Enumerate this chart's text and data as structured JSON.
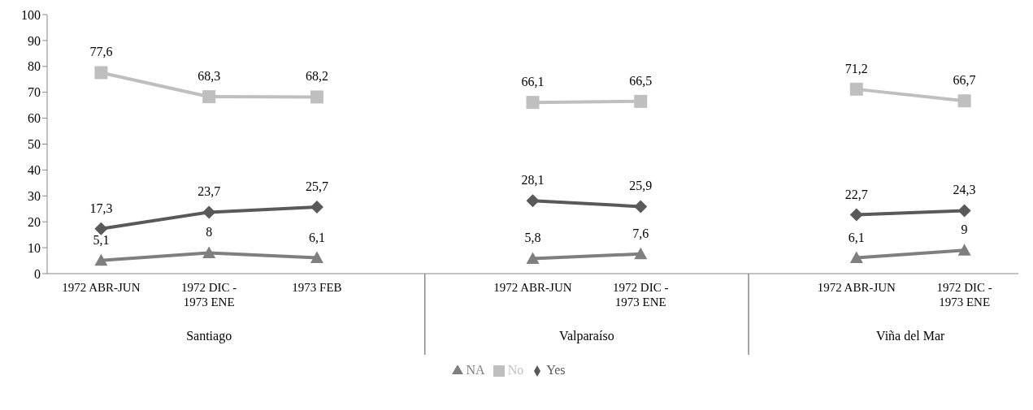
{
  "chart_data": {
    "type": "line",
    "categories": [
      "1972 ABR-JUN",
      "1972 DIC -\n1973 ENE",
      "1973 FEB",
      null,
      "1972 ABR-JUN",
      "1972 DIC -\n1973 ENE",
      null,
      "1972 ABR-JUN",
      "1972 DIC -\n1973 ENE"
    ],
    "series": [
      {
        "name": "Yes",
        "color": "#595959",
        "marker": "diamond",
        "values": [
          17.3,
          23.7,
          25.7,
          null,
          28.1,
          25.9,
          null,
          22.7,
          24.3
        ],
        "value_labels": [
          "17,3",
          "23,7",
          "25,7",
          null,
          "28,1",
          "25,9",
          null,
          "22,7",
          "24,3"
        ]
      },
      {
        "name": "No",
        "color": "#bfbfbf",
        "marker": "square",
        "values": [
          77.6,
          68.3,
          68.2,
          null,
          66.1,
          66.5,
          null,
          71.2,
          66.7
        ],
        "value_labels": [
          "77,6",
          "68,3",
          "68,2",
          null,
          "66,1",
          "66,5",
          null,
          "71,2",
          "66,7"
        ]
      },
      {
        "name": "NA",
        "color": "#7f7f7f",
        "marker": "triangle",
        "values": [
          5.1,
          8,
          6.1,
          null,
          5.8,
          7.6,
          null,
          6.1,
          9
        ],
        "value_labels": [
          "5,1",
          "8",
          "6,1",
          null,
          "5,8",
          "7,6",
          null,
          "6,1",
          "9"
        ]
      }
    ],
    "annotations": [
      "Santiago",
      "Valparaíso",
      "Viña del Mar"
    ],
    "ylim": [
      0,
      100
    ],
    "yticks": [
      0,
      10,
      20,
      30,
      40,
      50,
      60,
      70,
      80,
      90,
      100
    ],
    "grid": false,
    "legend": "bottom"
  }
}
